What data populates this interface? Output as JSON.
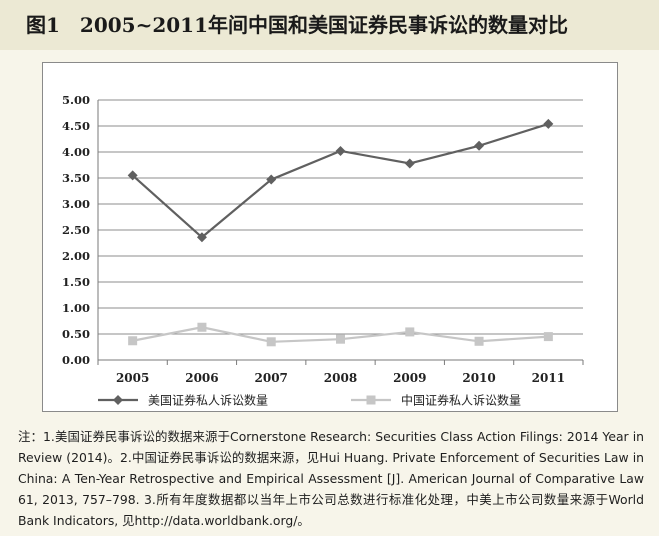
{
  "figure_title": "图1　2005~2011年间中国和美国证券民事诉讼的数量对比",
  "chart_data": {
    "type": "line",
    "title": "图1　2005~2011年间中国和美国证券民事诉讼的数量对比",
    "xlabel": "",
    "ylabel": "",
    "categories": [
      "2005",
      "2006",
      "2007",
      "2008",
      "2009",
      "2010",
      "2011"
    ],
    "y_ticks": [
      "0.00",
      "0.50",
      "1.00",
      "1.50",
      "2.00",
      "2.50",
      "3.00",
      "3.50",
      "4.00",
      "4.50",
      "5.00"
    ],
    "ylim": [
      0,
      5
    ],
    "grid": true,
    "legend_position": "bottom",
    "series": [
      {
        "name": "美国证券私人诉讼数量",
        "values": [
          3.55,
          2.36,
          3.47,
          4.02,
          3.78,
          4.12,
          4.54
        ],
        "color": "#606060",
        "marker": "diamond"
      },
      {
        "name": "中国证券私人诉讼数量",
        "values": [
          0.37,
          0.63,
          0.35,
          0.4,
          0.54,
          0.36,
          0.45
        ],
        "color": "#c6c6c6",
        "marker": "square"
      }
    ]
  },
  "note": "注：1.美国证券民事诉讼的数据来源于Cornerstone Research: Securities Class Action Filings: 2014 Year in Review (2014)。2.中国证券民事诉讼的数据来源，见Hui Huang. Private Enforcement of Securities Law in China: A Ten-Year Retrospective and Empirical Assessment [J]. American Journal of Comparative Law 61, 2013, 757–798. 3.所有年度数据都以当年上市公司总数进行标准化处理，中美上市公司数量来源于World Bank Indicators, 见http://data.worldbank.org/。"
}
